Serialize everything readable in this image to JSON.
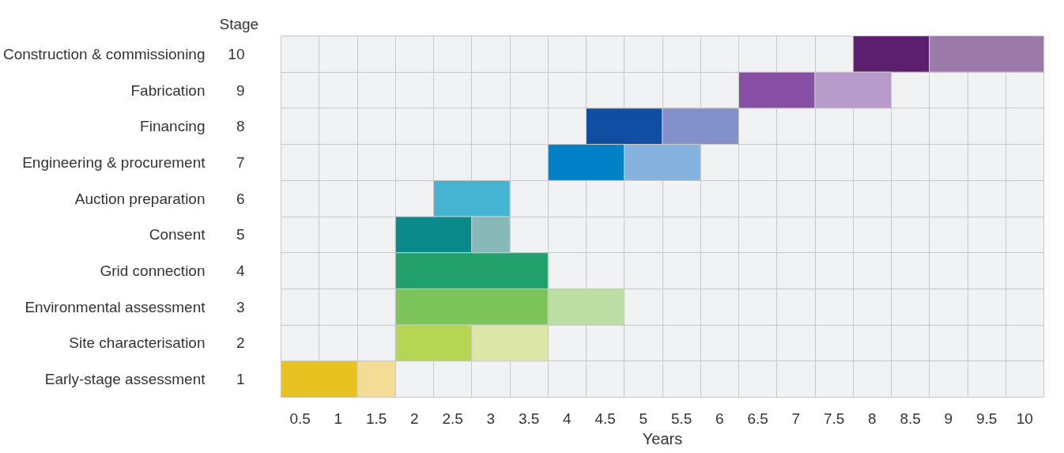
{
  "chart_data": {
    "type": "bar",
    "orientation": "horizontal",
    "categories": [
      "Construction & commissioning",
      "Fabrication",
      "Financing",
      "Engineering & procurement",
      "Auction preparation",
      "Consent",
      "Grid connection",
      "Environmental assessment",
      "Site characterisation",
      "Early-stage assessment"
    ],
    "y2_categories": [
      "10",
      "9",
      "8",
      "7",
      "6",
      "5",
      "4",
      "3",
      "2",
      "1"
    ],
    "y2label": "Stage",
    "xlabel": "Years",
    "xlim": [
      0.25,
      10.25
    ],
    "xticks": [
      0.5,
      1,
      1.5,
      2,
      2.5,
      3,
      3.5,
      4,
      4.5,
      5,
      5.5,
      6,
      6.5,
      7,
      7.5,
      8,
      8.5,
      9,
      9.5,
      10
    ],
    "grid": true,
    "series": [
      {
        "base": [
          7.75,
          6.25,
          4.25,
          3.75,
          2.25,
          1.75,
          1.75,
          1.75,
          1.75,
          0.25
        ],
        "values": [
          1,
          1,
          1,
          1,
          1,
          1,
          2,
          2,
          1,
          1
        ],
        "colors": [
          "#5c1f6e",
          "#874fa3",
          "#0f4ea3",
          "#0080c6",
          "#45b4d3",
          "#0a8a8a",
          "#22a06b",
          "#7cc35a",
          "#b5d553",
          "#e8c221"
        ]
      },
      {
        "base": [
          8.75,
          7.25,
          5.25,
          4.75,
          null,
          2.75,
          null,
          3.75,
          2.75,
          1.25
        ],
        "values": [
          1.5,
          1,
          1,
          1,
          null,
          0.5,
          null,
          1,
          1,
          0.5
        ],
        "colors": [
          "#9b7aaa",
          "#b69bcb",
          "#8390c9",
          "#86b2df",
          null,
          "#88b9b9",
          null,
          "#bcdea5",
          "#dbe6a7",
          "#f3dd96"
        ]
      }
    ]
  }
}
